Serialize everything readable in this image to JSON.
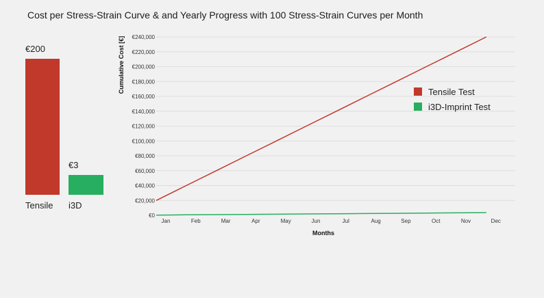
{
  "chart_data": [
    {
      "type": "bar",
      "title": "Cost per Stress-Strain Curve & and Yearly Progress with 100 Stress-Strain Curves per Month",
      "categories": [
        "Tensile",
        "i3D"
      ],
      "values": [
        200,
        3
      ],
      "value_labels": [
        "€200",
        "€3"
      ],
      "colors": [
        "#c0392b",
        "#27ae60"
      ]
    },
    {
      "type": "line",
      "x": [
        "Jan",
        "Feb",
        "Mar",
        "Apr",
        "May",
        "Jun",
        "Jul",
        "Aug",
        "Sep",
        "Oct",
        "Nov",
        "Dec"
      ],
      "xlabel": "Months",
      "ylabel": "Cumulative Cost [€]",
      "ylim": [
        0,
        240000
      ],
      "yticks": [
        0,
        20000,
        40000,
        60000,
        80000,
        100000,
        120000,
        140000,
        160000,
        180000,
        200000,
        220000,
        240000
      ],
      "ytick_labels": [
        "€0",
        "€20,000",
        "€40,000",
        "€60,000",
        "€80,000",
        "€100,000",
        "€120,000",
        "€140,000",
        "€160,000",
        "€180,000",
        "€200,000",
        "€220,000",
        "€240,000"
      ],
      "grid": true,
      "legend_position": "right",
      "series": [
        {
          "name": "Tensile Test",
          "color": "#c0392b",
          "values": [
            20000,
            40000,
            60000,
            80000,
            100000,
            120000,
            140000,
            160000,
            180000,
            200000,
            220000,
            240000
          ]
        },
        {
          "name": "i3D-Imprint Test",
          "color": "#27ae60",
          "values": [
            300,
            600,
            900,
            1200,
            1500,
            1800,
            2100,
            2400,
            2700,
            3000,
            3300,
            3600
          ]
        }
      ]
    }
  ]
}
